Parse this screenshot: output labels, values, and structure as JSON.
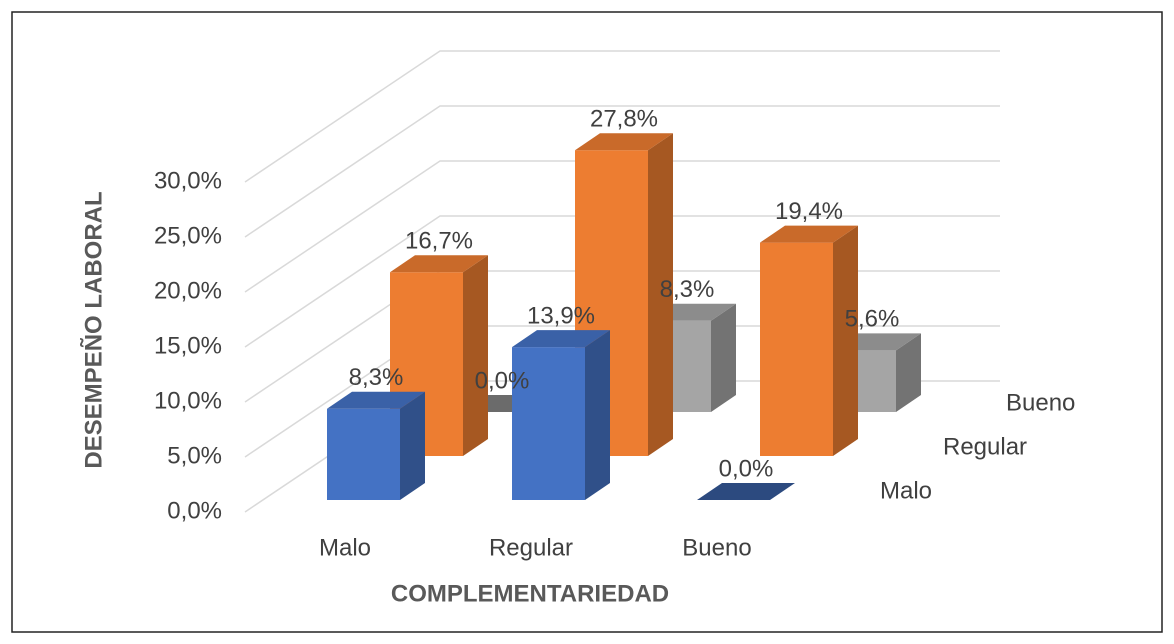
{
  "chart_data": {
    "type": "bar3d",
    "x_label": "COMPLEMENTARIEDAD",
    "y_label": "DESEMPEÑO LABORAL",
    "categories": [
      "Malo",
      "Regular",
      "Bueno"
    ],
    "series": [
      {
        "name": "Malo",
        "color": "#4472c4",
        "values": [
          8.3,
          13.9,
          0.0
        ],
        "value_labels": [
          "8,3%",
          "13,9%",
          "0,0%"
        ]
      },
      {
        "name": "Regular",
        "color": "#ed7d31",
        "values": [
          16.7,
          27.8,
          19.4
        ],
        "value_labels": [
          "16,7%",
          "27,8%",
          "19,4%"
        ]
      },
      {
        "name": "Bueno",
        "color": "#a5a5a5",
        "values": [
          0.0,
          8.3,
          5.6
        ],
        "value_labels": [
          "0,0%",
          "8,3%",
          "5,6%"
        ]
      }
    ],
    "ylim": [
      0,
      30
    ],
    "yticks": [
      {
        "value": 0,
        "label": "0,0%"
      },
      {
        "value": 5,
        "label": "5,0%"
      },
      {
        "value": 10,
        "label": "10,0%"
      },
      {
        "value": 15,
        "label": "15,0%"
      },
      {
        "value": 20,
        "label": "20,0%"
      },
      {
        "value": 25,
        "label": "25,0%"
      },
      {
        "value": 30,
        "label": "30,0%"
      }
    ],
    "grid": true
  }
}
